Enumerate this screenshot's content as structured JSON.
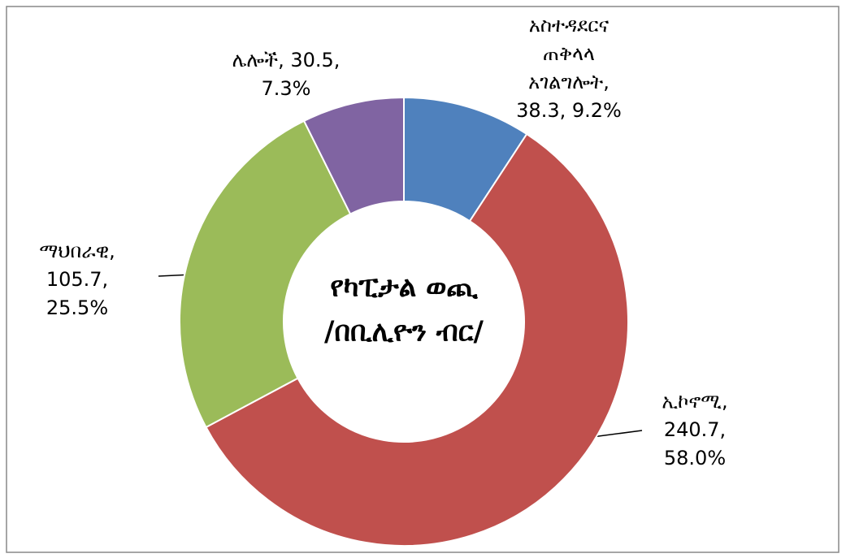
{
  "chart_data": {
    "type": "donut",
    "title_lines": [
      "የካፒታል ወጪ",
      "/በቢሊዮን ብር/"
    ],
    "values": [
      38.3,
      240.7,
      105.7,
      30.5
    ],
    "colors": [
      "#4f81bd",
      "#c0504d",
      "#9bbb59",
      "#8064a2"
    ],
    "label_lines": [
      [
        "አስተዳደርና",
        "ጠቅላላ",
        "አገልግሎት,",
        "38.3, 9.2%"
      ],
      [
        "ኢኮኖሚ,",
        "240.7,",
        "58.0%"
      ],
      [
        "ማህበራዊ,",
        "105.7,",
        "25.5%"
      ],
      [
        "ሌሎች, 30.5,",
        "7.3%"
      ]
    ]
  }
}
